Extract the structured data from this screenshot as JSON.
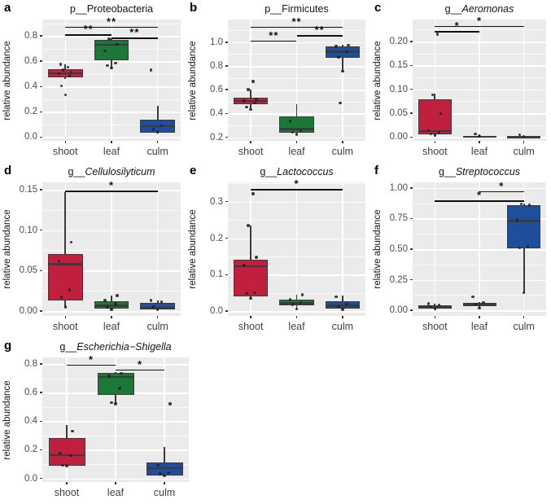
{
  "figure": {
    "ylabel": "relative abundance",
    "categories": [
      "shoot",
      "leaf",
      "culm"
    ],
    "colors": {
      "shoot": "#C11F3E",
      "leaf": "#1B7837",
      "culm": "#1F4E9C"
    },
    "panel_background": "#EBEBEB",
    "gridline_color": "#FFFFFF"
  },
  "chart_data": [
    {
      "type": "box",
      "panel_label": "a",
      "title": {
        "prefix": "p__",
        "taxon": "Proteobacteria",
        "italic": false
      },
      "ylabel": "relative abundance",
      "categories": [
        "shoot",
        "leaf",
        "culm"
      ],
      "ylim": [
        -0.03,
        0.93
      ],
      "yticks": [
        0,
        0.2,
        0.4,
        0.6,
        0.8
      ],
      "ytick_labels": [
        "0.0",
        "0.2",
        "0.4",
        "0.6",
        "0.8"
      ],
      "boxes": [
        {
          "category": "shoot",
          "color": "#C11F3E",
          "whisker_low": 0.46,
          "q1": 0.47,
          "median": 0.505,
          "q3": 0.535,
          "whisker_high": 0.575,
          "points": [
            0.335,
            0.405,
            0.485,
            0.5,
            0.515,
            0.53,
            0.555,
            0.575
          ]
        },
        {
          "category": "leaf",
          "color": "#1B7837",
          "whisker_low": 0.54,
          "q1": 0.61,
          "median": 0.73,
          "q3": 0.77,
          "whisker_high": 0.78,
          "points": [
            0.545,
            0.565,
            0.585,
            0.68,
            0.735,
            0.775
          ]
        },
        {
          "category": "culm",
          "color": "#1F4E9C",
          "whisker_low": 0.03,
          "q1": 0.035,
          "median": 0.085,
          "q3": 0.135,
          "whisker_high": 0.245,
          "points": [
            0.04,
            0.06,
            0.09,
            0.53
          ]
        }
      ],
      "significance": [
        {
          "group1": "shoot",
          "group2": "culm",
          "label": "**",
          "y": 0.875
        },
        {
          "group1": "shoot",
          "group2": "leaf",
          "label": "**",
          "y": 0.812
        },
        {
          "group1": "leaf",
          "group2": "culm",
          "label": "**",
          "y": 0.788
        }
      ]
    },
    {
      "type": "box",
      "panel_label": "b",
      "title": {
        "prefix": "p__",
        "taxon": "Firmicutes",
        "italic": false
      },
      "ylabel": "relative abundance",
      "categories": [
        "shoot",
        "leaf",
        "culm"
      ],
      "ylim": [
        0.17,
        1.19
      ],
      "yticks": [
        0.2,
        0.4,
        0.6,
        0.8,
        1.0
      ],
      "ytick_labels": [
        "0.2",
        "0.4",
        "0.6",
        "0.8",
        "1.0"
      ],
      "boxes": [
        {
          "category": "shoot",
          "color": "#C11F3E",
          "whisker_low": 0.435,
          "q1": 0.475,
          "median": 0.505,
          "q3": 0.53,
          "whisker_high": 0.6,
          "points": [
            0.435,
            0.455,
            0.49,
            0.505,
            0.52,
            0.6,
            0.67
          ]
        },
        {
          "category": "leaf",
          "color": "#1B7837",
          "whisker_low": 0.225,
          "q1": 0.235,
          "median": 0.27,
          "q3": 0.375,
          "whisker_high": 0.48,
          "points": [
            0.225,
            0.24,
            0.255,
            0.335
          ]
        },
        {
          "category": "culm",
          "color": "#1F4E9C",
          "whisker_low": 0.755,
          "q1": 0.865,
          "median": 0.92,
          "q3": 0.965,
          "whisker_high": 0.975,
          "points": [
            0.755,
            0.875,
            0.92,
            0.965,
            0.975,
            0.49
          ]
        }
      ],
      "significance": [
        {
          "group1": "shoot",
          "group2": "culm",
          "label": "**",
          "y": 1.13
        },
        {
          "group1": "leaf",
          "group2": "culm",
          "label": "**",
          "y": 1.06
        },
        {
          "group1": "shoot",
          "group2": "leaf",
          "label": "**",
          "y": 1.015
        }
      ]
    },
    {
      "type": "box",
      "panel_label": "c",
      "title": {
        "prefix": "g__",
        "taxon": "Aeromonas",
        "italic": true
      },
      "ylabel": "relative abundance",
      "categories": [
        "shoot",
        "leaf",
        "culm"
      ],
      "ylim": [
        -0.008,
        0.246
      ],
      "yticks": [
        0,
        0.05,
        0.1,
        0.15,
        0.2
      ],
      "ytick_labels": [
        "0.00",
        "0.05",
        "0.10",
        "0.15",
        "0.20"
      ],
      "boxes": [
        {
          "category": "shoot",
          "color": "#C11F3E",
          "whisker_low": 0.003,
          "q1": 0.006,
          "median": 0.013,
          "q3": 0.079,
          "whisker_high": 0.091,
          "points": [
            0.004,
            0.006,
            0.009,
            0.013,
            0.049,
            0.088,
            0.215
          ]
        },
        {
          "category": "leaf",
          "color": "#1B7837",
          "whisker_low": 0.0,
          "q1": 0.0,
          "median": 0.001,
          "q3": 0.003,
          "whisker_high": 0.005,
          "points": [
            0.001,
            0.007
          ]
        },
        {
          "category": "culm",
          "color": "#1F4E9C",
          "whisker_low": 0.0,
          "q1": 0.0,
          "median": 0.001,
          "q3": 0.002,
          "whisker_high": 0.003,
          "points": [
            0.001,
            0.005
          ]
        }
      ],
      "significance": [
        {
          "group1": "shoot",
          "group2": "culm",
          "label": "*",
          "y": 0.233
        },
        {
          "group1": "shoot",
          "group2": "leaf",
          "label": "*",
          "y": 0.222
        }
      ]
    },
    {
      "type": "box",
      "panel_label": "d",
      "title": {
        "prefix": "g__",
        "taxon": "Cellulosilyticum",
        "italic": true
      },
      "ylabel": "relative abundance",
      "categories": [
        "shoot",
        "leaf",
        "culm"
      ],
      "ylim": [
        -0.006,
        0.159
      ],
      "yticks": [
        0,
        0.05,
        0.1,
        0.15
      ],
      "ytick_labels": [
        "0.00",
        "0.05",
        "0.10",
        "0.15"
      ],
      "boxes": [
        {
          "category": "shoot",
          "color": "#C11F3E",
          "whisker_low": 0.004,
          "q1": 0.013,
          "median": 0.058,
          "q3": 0.07,
          "whisker_high": 0.147,
          "points": [
            0.005,
            0.017,
            0.026,
            0.062,
            0.085
          ]
        },
        {
          "category": "leaf",
          "color": "#1B7837",
          "whisker_low": 0.001,
          "q1": 0.003,
          "median": 0.0065,
          "q3": 0.012,
          "whisker_high": 0.019,
          "points": [
            0.002,
            0.005,
            0.009,
            0.013,
            0.019
          ]
        },
        {
          "category": "culm",
          "color": "#1F4E9C",
          "whisker_low": 0.001,
          "q1": 0.002,
          "median": 0.004,
          "q3": 0.01,
          "whisker_high": 0.013,
          "points": [
            0.002,
            0.005,
            0.011,
            0.013
          ]
        }
      ],
      "significance": [
        {
          "group1": "shoot",
          "group2": "culm",
          "label": "*",
          "y": 0.149
        }
      ]
    },
    {
      "type": "box",
      "panel_label": "e",
      "title": {
        "prefix": "g__",
        "taxon": "Lactococcus",
        "italic": true
      },
      "ylabel": "relative abundance",
      "categories": [
        "shoot",
        "leaf",
        "culm"
      ],
      "ylim": [
        -0.013,
        0.353
      ],
      "yticks": [
        0,
        0.1,
        0.2,
        0.3
      ],
      "ytick_labels": [
        "0.0",
        "0.1",
        "0.2",
        "0.3"
      ],
      "boxes": [
        {
          "category": "shoot",
          "color": "#C11F3E",
          "whisker_low": 0.033,
          "q1": 0.041,
          "median": 0.124,
          "q3": 0.142,
          "whisker_high": 0.235,
          "points": [
            0.035,
            0.048,
            0.05,
            0.125,
            0.148,
            0.235,
            0.322
          ]
        },
        {
          "category": "leaf",
          "color": "#1B7837",
          "whisker_low": 0.005,
          "q1": 0.016,
          "median": 0.022,
          "q3": 0.031,
          "whisker_high": 0.045,
          "points": [
            0.006,
            0.018,
            0.024,
            0.032,
            0.045
          ]
        },
        {
          "category": "culm",
          "color": "#1F4E9C",
          "whisker_low": 0.004,
          "q1": 0.008,
          "median": 0.015,
          "q3": 0.028,
          "whisker_high": 0.042,
          "points": [
            0.005,
            0.012,
            0.02,
            0.04
          ]
        }
      ],
      "significance": [
        {
          "group1": "shoot",
          "group2": "culm",
          "label": "*",
          "y": 0.335
        }
      ]
    },
    {
      "type": "box",
      "panel_label": "f",
      "title": {
        "prefix": "g__",
        "taxon": "Streptococcus",
        "italic": true
      },
      "ylabel": "relative abundance",
      "categories": [
        "shoot",
        "leaf",
        "culm"
      ],
      "ylim": [
        -0.045,
        1.045
      ],
      "yticks": [
        0,
        0.25,
        0.5,
        0.75,
        1.0
      ],
      "ytick_labels": [
        "0.00",
        "0.25",
        "0.50",
        "0.75",
        "1.00"
      ],
      "boxes": [
        {
          "category": "shoot",
          "color": "#C11F3E",
          "whisker_low": 0.01,
          "q1": 0.018,
          "median": 0.03,
          "q3": 0.042,
          "whisker_high": 0.055,
          "points": [
            0.015,
            0.03,
            0.045,
            0.055
          ]
        },
        {
          "category": "leaf",
          "color": "#1B7837",
          "whisker_low": 0.02,
          "q1": 0.035,
          "median": 0.05,
          "q3": 0.062,
          "whisker_high": 0.07,
          "points": [
            0.02,
            0.05,
            0.065,
            0.11
          ]
        },
        {
          "category": "culm",
          "color": "#1F4E9C",
          "whisker_low": 0.14,
          "q1": 0.505,
          "median": 0.73,
          "q3": 0.86,
          "whisker_high": 0.875,
          "points": [
            0.145,
            0.51,
            0.52,
            0.74,
            0.86,
            0.87
          ]
        }
      ],
      "significance": [
        {
          "group1": "leaf",
          "group2": "culm",
          "label": "*",
          "y": 0.975
        },
        {
          "group1": "shoot",
          "group2": "culm",
          "label": "*",
          "y": 0.9
        }
      ]
    },
    {
      "type": "box",
      "panel_label": "g",
      "title": {
        "prefix": "g__",
        "taxon": "Escherichia−Shigella",
        "italic": true
      },
      "ylabel": "relative abundance",
      "categories": [
        "shoot",
        "leaf",
        "culm"
      ],
      "ylim": [
        -0.025,
        0.845
      ],
      "yticks": [
        0,
        0.2,
        0.4,
        0.6,
        0.8
      ],
      "ytick_labels": [
        "0.0",
        "0.2",
        "0.4",
        "0.6",
        "0.8"
      ],
      "boxes": [
        {
          "category": "shoot",
          "color": "#C11F3E",
          "whisker_low": 0.085,
          "q1": 0.09,
          "median": 0.163,
          "q3": 0.283,
          "whisker_high": 0.375,
          "points": [
            0.088,
            0.093,
            0.16,
            0.178,
            0.332
          ]
        },
        {
          "category": "leaf",
          "color": "#1B7837",
          "whisker_low": 0.52,
          "q1": 0.583,
          "median": 0.71,
          "q3": 0.735,
          "whisker_high": 0.74,
          "points": [
            0.52,
            0.53,
            0.63,
            0.715,
            0.735
          ]
        },
        {
          "category": "culm",
          "color": "#1F4E9C",
          "whisker_low": 0.013,
          "q1": 0.02,
          "median": 0.07,
          "q3": 0.112,
          "whisker_high": 0.22,
          "points": [
            0.02,
            0.032,
            0.042,
            0.09,
            0.52
          ]
        }
      ],
      "significance": [
        {
          "group1": "shoot",
          "group2": "leaf",
          "label": "*",
          "y": 0.795
        },
        {
          "group1": "leaf",
          "group2": "culm",
          "label": "*",
          "y": 0.762
        }
      ]
    }
  ]
}
